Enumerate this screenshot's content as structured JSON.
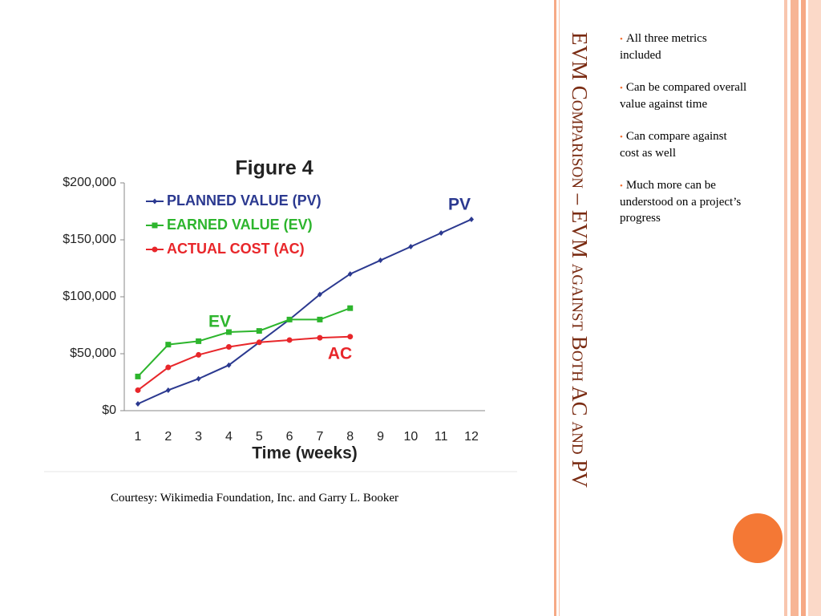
{
  "slide": {
    "title": "EVM Comparison – EVM against Both AC and PV",
    "bullets": [
      "All three metrics included",
      "Can be compared overall value against time",
      "Can compare against cost as well",
      "Much more can be understood on a project’s progress"
    ],
    "caption": "Courtesy: Wikimedia Foundation, Inc. and Garry L. Booker"
  },
  "chart_data": {
    "type": "line",
    "title": "Figure 4",
    "x_label": "Time (weeks)",
    "categories": [
      "1",
      "2",
      "3",
      "4",
      "5",
      "6",
      "7",
      "8",
      "9",
      "10",
      "11",
      "12"
    ],
    "series": [
      {
        "name": "PLANNED VALUE (PV)",
        "color": "#2b3990",
        "marker": "diamond",
        "values": [
          6000,
          18000,
          28000,
          40000,
          60000,
          80000,
          102000,
          120000,
          132000,
          144000,
          156000,
          168000
        ]
      },
      {
        "name": "EARNED VALUE (EV)",
        "color": "#2db52d",
        "marker": "square",
        "values": [
          30000,
          58000,
          61000,
          69000,
          70000,
          80000,
          80000,
          90000,
          null,
          null,
          null,
          null
        ]
      },
      {
        "name": "ACTUAL COST (AC)",
        "color": "#e8262a",
        "marker": "circle",
        "values": [
          18000,
          38000,
          49000,
          56000,
          60000,
          62000,
          64000,
          65000,
          null,
          null,
          null,
          null
        ]
      }
    ],
    "annotations": [
      {
        "text": "PV",
        "color": "#2b3990"
      },
      {
        "text": "EV",
        "color": "#2db52d"
      },
      {
        "text": "AC",
        "color": "#e8262a"
      }
    ],
    "ylim": [
      0,
      200000
    ],
    "yticks": [
      {
        "value": 0,
        "label": "$0"
      },
      {
        "value": 50000,
        "label": "$50,000"
      },
      {
        "value": 100000,
        "label": "$100,000"
      },
      {
        "value": 150000,
        "label": "$150,000"
      },
      {
        "value": 200000,
        "label": "$200,000"
      }
    ],
    "legend": "upper left"
  }
}
